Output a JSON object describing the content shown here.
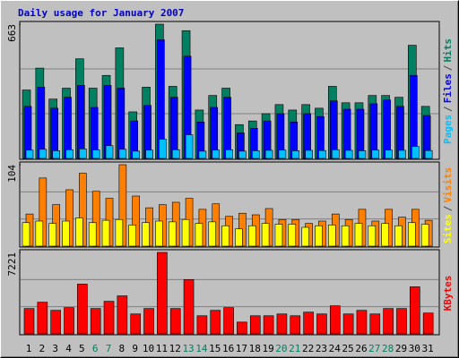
{
  "legend_separator": "/",
  "chart_data": [
    {
      "type": "bar",
      "title": "Daily usage for January 2007",
      "ylim": [
        0,
        663
      ],
      "yticks": [
        663
      ],
      "series": [
        {
          "name": "Hits",
          "color": "#008060",
          "values": [
            338,
            446,
            293,
            347,
            492,
            347,
            410,
            546,
            230,
            352,
            663,
            356,
            631,
            239,
            311,
            347,
            167,
            185,
            221,
            266,
            239,
            266,
            248,
            356,
            275,
            275,
            311,
            311,
            302,
            559,
            257
          ]
        },
        {
          "name": "Files",
          "color": "#0000ff",
          "values": [
            257,
            352,
            248,
            302,
            361,
            252,
            361,
            347,
            185,
            262,
            586,
            302,
            505,
            180,
            252,
            302,
            126,
            149,
            185,
            221,
            180,
            221,
            207,
            284,
            243,
            243,
            270,
            289,
            257,
            410,
            212
          ]
        },
        {
          "name": "Pages",
          "color": "#00c0ff",
          "values": [
            41,
            45,
            38,
            43,
            47,
            42,
            63,
            45,
            36,
            41,
            95,
            43,
            117,
            36,
            41,
            43,
            36,
            38,
            40,
            41,
            38,
            40,
            39,
            43,
            40,
            38,
            41,
            41,
            40,
            59,
            39
          ]
        }
      ]
    },
    {
      "type": "bar",
      "ylim": [
        0,
        104
      ],
      "yticks": [
        104
      ],
      "series": [
        {
          "name": "Visits",
          "color": "#ff8000",
          "values": [
            41,
            87,
            53,
            72,
            93,
            70,
            61,
            104,
            64,
            49,
            53,
            56,
            61,
            47,
            54,
            38,
            42,
            40,
            48,
            34,
            34,
            29,
            32,
            41,
            34,
            47,
            32,
            47,
            37,
            47,
            33
          ]
        },
        {
          "name": "Sites",
          "color": "#ffff00",
          "values": [
            30,
            32,
            29,
            32,
            36,
            30,
            33,
            34,
            27,
            30,
            32,
            31,
            34,
            29,
            31,
            26,
            22,
            26,
            29,
            28,
            28,
            24,
            26,
            27,
            26,
            29,
            26,
            29,
            26,
            30,
            28
          ]
        }
      ]
    },
    {
      "type": "bar",
      "ylim": [
        0,
        7221
      ],
      "yticks": [
        7221
      ],
      "categories": [
        1,
        2,
        3,
        4,
        5,
        6,
        7,
        8,
        9,
        10,
        11,
        12,
        13,
        14,
        15,
        16,
        17,
        18,
        19,
        20,
        21,
        22,
        23,
        24,
        25,
        26,
        27,
        28,
        29,
        30,
        31
      ],
      "category_colors": [
        "#000000",
        "#000000",
        "#000000",
        "#000000",
        "#000000",
        "#008060",
        "#008060",
        "#000000",
        "#000000",
        "#000000",
        "#000000",
        "#000000",
        "#008060",
        "#008060",
        "#000000",
        "#000000",
        "#000000",
        "#000000",
        "#000000",
        "#008060",
        "#008060",
        "#000000",
        "#000000",
        "#000000",
        "#000000",
        "#000000",
        "#008060",
        "#008060",
        "#000000",
        "#000000",
        "#000000"
      ],
      "series": [
        {
          "name": "KBytes",
          "color": "#ff0000",
          "values": [
            2246,
            2807,
            2085,
            2326,
            4411,
            2246,
            2887,
            3369,
            1765,
            2246,
            7221,
            2246,
            4814,
            1604,
            2085,
            2326,
            1043,
            1604,
            1604,
            1765,
            1604,
            1925,
            1765,
            2486,
            1765,
            2085,
            1765,
            2246,
            2246,
            4170,
            1845
          ]
        }
      ]
    }
  ]
}
